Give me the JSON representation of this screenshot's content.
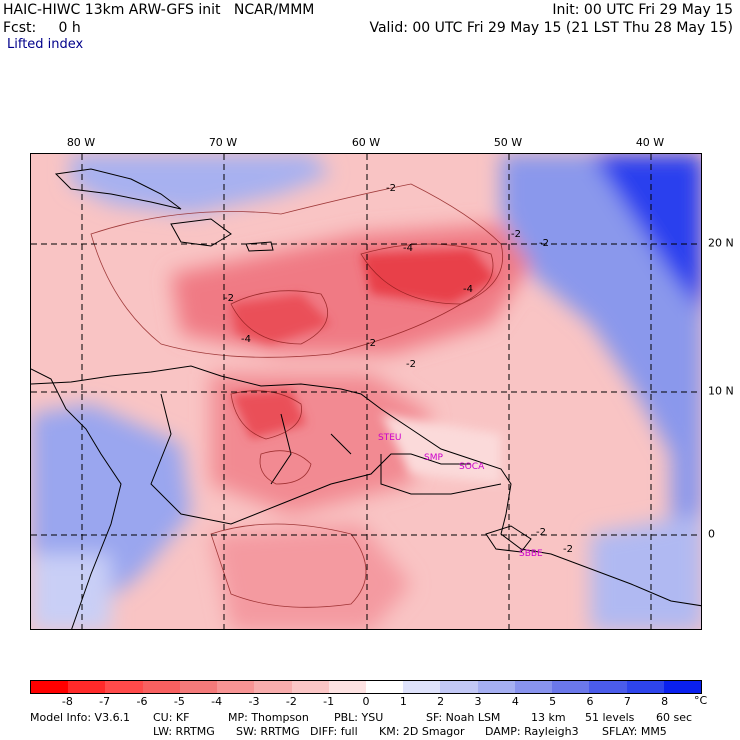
{
  "header": {
    "line1_left": "HAIC-HIWC 13km ARW-GFS init   NCAR/MMM",
    "line1_right": "Init: 00 UTC Fri 29 May 15",
    "line2_left": "Fcst:     0 h",
    "line2_right": "Valid: 00 UTC Fri 29 May 15 (21 LST Thu 28 May 15)",
    "field": "Lifted index"
  },
  "axes": {
    "lon_labels": [
      "80 W",
      "70 W",
      "60 W",
      "50 W",
      "40 W"
    ],
    "lat_labels": [
      "20 N",
      "10 N",
      "0"
    ]
  },
  "map": {
    "contour_labels": [
      "-2",
      "-2",
      "-2",
      "-2",
      "-2",
      "-2",
      "-2",
      "-2",
      "-4",
      "-4",
      "-4"
    ],
    "station_labels": [
      "STEU",
      "SMP",
      "SOCA",
      "SBBE"
    ],
    "colors": {
      "strong_unstable": "#e8404a",
      "unstable": "#f47a84",
      "weak_unstable": "#f8b3b8",
      "neutral": "#fbe2e2",
      "stable": "#9aa8f0",
      "very_stable": "#2a3ef0",
      "station": "#cc00cc"
    }
  },
  "colorbar": {
    "labels": [
      "-8",
      "-7",
      "-6",
      "-5",
      "-4",
      "-3",
      "-2",
      "-1",
      "0",
      "1",
      "2",
      "3",
      "4",
      "5",
      "6",
      "7",
      "8"
    ],
    "unit": "°C",
    "colors": [
      "#ff0000",
      "#ff2a2a",
      "#ff4a4a",
      "#f86060",
      "#f47a7a",
      "#f79494",
      "#f8adad",
      "#fbc6c6",
      "#fde2e2",
      "#ffffff",
      "#dee2fb",
      "#c2c8f6",
      "#a5aff2",
      "#8893ee",
      "#6b78ea",
      "#4b5cea",
      "#2e44ec",
      "#0a20ef"
    ]
  },
  "footer": {
    "line1": [
      "Model Info: V3.6.1",
      "CU: KF",
      "MP: Thompson",
      "PBL: YSU",
      "SF: Noah LSM",
      "13 km",
      "51 levels",
      "60 sec"
    ],
    "line2": [
      "LW: RRTMG",
      "SW: RRTMG",
      "DIFF: full",
      "KM: 2D Smagor",
      "DAMP: Rayleigh3",
      "SFLAY: MM5"
    ]
  }
}
